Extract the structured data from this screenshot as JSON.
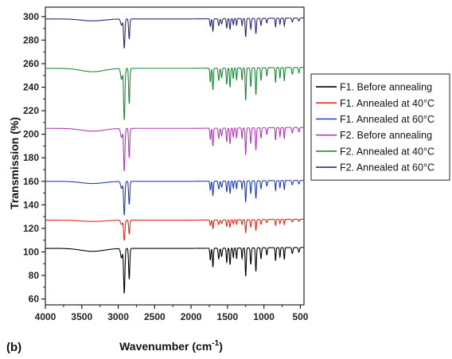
{
  "panel_label": "(b)",
  "chart_data": {
    "type": "line",
    "title": "",
    "xlabel": "Wavenumber (cm",
    "xlabel_sup": "-1",
    "xlabel_close": ")",
    "ylabel": "Transmission (%)",
    "xlim": [
      4000,
      450
    ],
    "ylim": [
      55,
      308
    ],
    "x_reversed": true,
    "grid": false,
    "legend_position": "right",
    "xticks": [
      4000,
      3500,
      3000,
      2500,
      2000,
      1500,
      1000,
      500
    ],
    "yticks": [
      60,
      80,
      100,
      120,
      140,
      160,
      180,
      200,
      220,
      240,
      260,
      280,
      300
    ],
    "series": [
      {
        "name": "F1. Before annealing",
        "color": "#000000",
        "baseline": 103,
        "depth": 1.0
      },
      {
        "name": "F1. Annealed at 40°C",
        "color": "#e8281e",
        "baseline": 127,
        "depth": 0.45
      },
      {
        "name": "F1. Annealed at 60°C",
        "color": "#1f3fbf",
        "baseline": 160,
        "depth": 0.75
      },
      {
        "name": "F2. Before annealing",
        "color": "#b23cb6",
        "baseline": 205,
        "depth": 0.95
      },
      {
        "name": "F2. Annealed at 40°C",
        "color": "#1e8a3a",
        "baseline": 256,
        "depth": 1.15
      },
      {
        "name": "F2. Annealed at 60°C",
        "color": "#2b2a7a",
        "baseline": 298,
        "depth": 0.65
      }
    ],
    "bands": [
      {
        "x": 3350,
        "depth": 2.5,
        "width": 160
      },
      {
        "x": 2955,
        "depth": 8,
        "width": 12
      },
      {
        "x": 2917,
        "depth": 38,
        "width": 9
      },
      {
        "x": 2849,
        "depth": 26,
        "width": 8
      },
      {
        "x": 1735,
        "depth": 10,
        "width": 7
      },
      {
        "x": 1700,
        "depth": 16,
        "width": 7
      },
      {
        "x": 1620,
        "depth": 9,
        "width": 8
      },
      {
        "x": 1580,
        "depth": 7,
        "width": 8
      },
      {
        "x": 1510,
        "depth": 12,
        "width": 7
      },
      {
        "x": 1465,
        "depth": 14,
        "width": 7
      },
      {
        "x": 1420,
        "depth": 8,
        "width": 6
      },
      {
        "x": 1375,
        "depth": 9,
        "width": 6
      },
      {
        "x": 1300,
        "depth": 9,
        "width": 6
      },
      {
        "x": 1250,
        "depth": 24,
        "width": 7
      },
      {
        "x": 1180,
        "depth": 14,
        "width": 7
      },
      {
        "x": 1110,
        "depth": 20,
        "width": 7
      },
      {
        "x": 1040,
        "depth": 9,
        "width": 7
      },
      {
        "x": 960,
        "depth": 6,
        "width": 7
      },
      {
        "x": 840,
        "depth": 11,
        "width": 6
      },
      {
        "x": 780,
        "depth": 8,
        "width": 6
      },
      {
        "x": 720,
        "depth": 10,
        "width": 6
      },
      {
        "x": 610,
        "depth": 5,
        "width": 8
      },
      {
        "x": 520,
        "depth": 4,
        "width": 8
      }
    ]
  }
}
